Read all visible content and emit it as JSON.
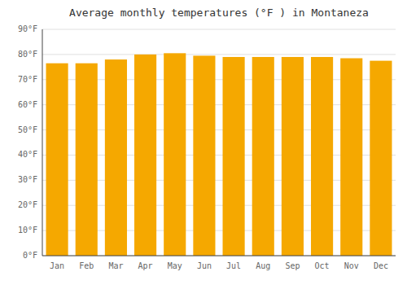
{
  "chart_data": {
    "type": "bar",
    "title": "Average monthly temperatures (°F ) in Montaneza",
    "categories": [
      "Jan",
      "Feb",
      "Mar",
      "Apr",
      "May",
      "Jun",
      "Jul",
      "Aug",
      "Sep",
      "Oct",
      "Nov",
      "Dec"
    ],
    "values": [
      76.5,
      76.5,
      78.0,
      80.0,
      80.5,
      79.5,
      79.0,
      79.0,
      79.0,
      79.0,
      78.5,
      77.5
    ],
    "color": "#F5A800",
    "ylim": [
      0,
      90
    ],
    "yticks": [
      {
        "value": 0,
        "label": "0°F"
      },
      {
        "value": 10,
        "label": "10°F"
      },
      {
        "value": 20,
        "label": "20°F"
      },
      {
        "value": 30,
        "label": "30°F"
      },
      {
        "value": 40,
        "label": "40°F"
      },
      {
        "value": 50,
        "label": "50°F"
      },
      {
        "value": 60,
        "label": "60°F"
      },
      {
        "value": 70,
        "label": "70°F"
      },
      {
        "value": 80,
        "label": "80°F"
      },
      {
        "value": 90,
        "label": "90°F"
      }
    ],
    "grid": true
  }
}
